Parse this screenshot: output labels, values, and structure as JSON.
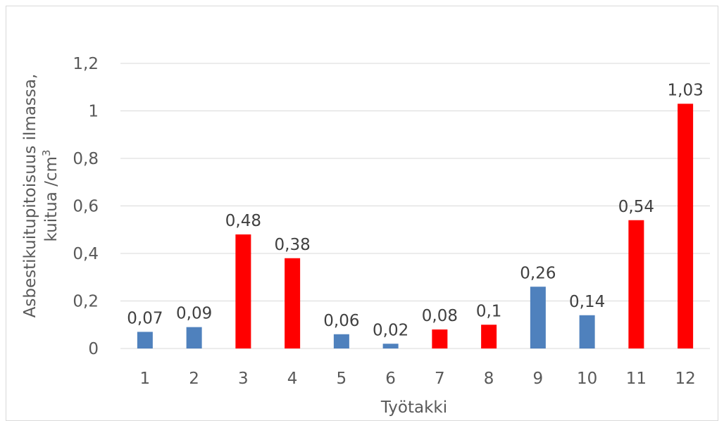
{
  "chart_data": {
    "type": "bar",
    "categories": [
      "1",
      "2",
      "3",
      "4",
      "5",
      "6",
      "7",
      "8",
      "9",
      "10",
      "11",
      "12"
    ],
    "values": [
      0.07,
      0.09,
      0.48,
      0.38,
      0.06,
      0.02,
      0.08,
      0.1,
      0.26,
      0.14,
      0.54,
      1.03
    ],
    "data_labels": [
      "0,07",
      "0,09",
      "0,48",
      "0,38",
      "0,06",
      "0,02",
      "0,08",
      "0,1",
      "0,26",
      "0,14",
      "0,54",
      "1,03"
    ],
    "bar_colors": [
      "#4f81bd",
      "#4f81bd",
      "#ff0000",
      "#ff0000",
      "#4f81bd",
      "#4f81bd",
      "#ff0000",
      "#ff0000",
      "#4f81bd",
      "#4f81bd",
      "#ff0000",
      "#ff0000"
    ],
    "y_ticks": [
      0,
      0.2,
      0.4,
      0.6,
      0.8,
      1,
      1.2
    ],
    "y_tick_labels": [
      "0",
      "0,2",
      "0,4",
      "0,6",
      "0,8",
      "1",
      "1,2"
    ],
    "ylim": [
      0,
      1.2
    ],
    "title": "",
    "xlabel": "Työtakki",
    "ylabel_line1": "Asbestikuitupitoisuus ilmassa,",
    "ylabel_line2": "kuitua /cm",
    "ylabel_superscript": "3",
    "grid": true,
    "legend": "none"
  }
}
